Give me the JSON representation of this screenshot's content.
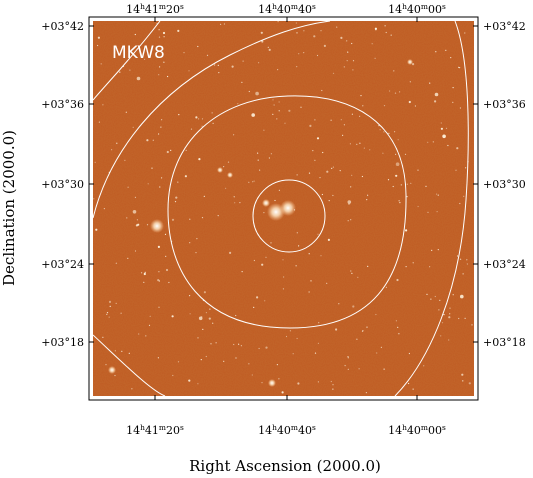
{
  "object_label": "MKW8",
  "x_axis": {
    "title": "Right Ascension (2000.0)",
    "ticks": [
      {
        "h": "14",
        "m": "41",
        "s": "20"
      },
      {
        "h": "14",
        "m": "40",
        "s": "40"
      },
      {
        "h": "14",
        "m": "40",
        "s": "00"
      }
    ]
  },
  "y_axis": {
    "title": "Declination (2000.0)",
    "ticks": [
      "+03°42",
      "+03°36",
      "+03°30",
      "+03°24",
      "+03°18"
    ]
  },
  "units": {
    "h": "h",
    "m": "m",
    "s": "s"
  },
  "colors": {
    "background": "#c05a22",
    "frame": "#000000",
    "contours": "#ffffff",
    "stars": "#fff4e0"
  },
  "image_description_free": true
}
